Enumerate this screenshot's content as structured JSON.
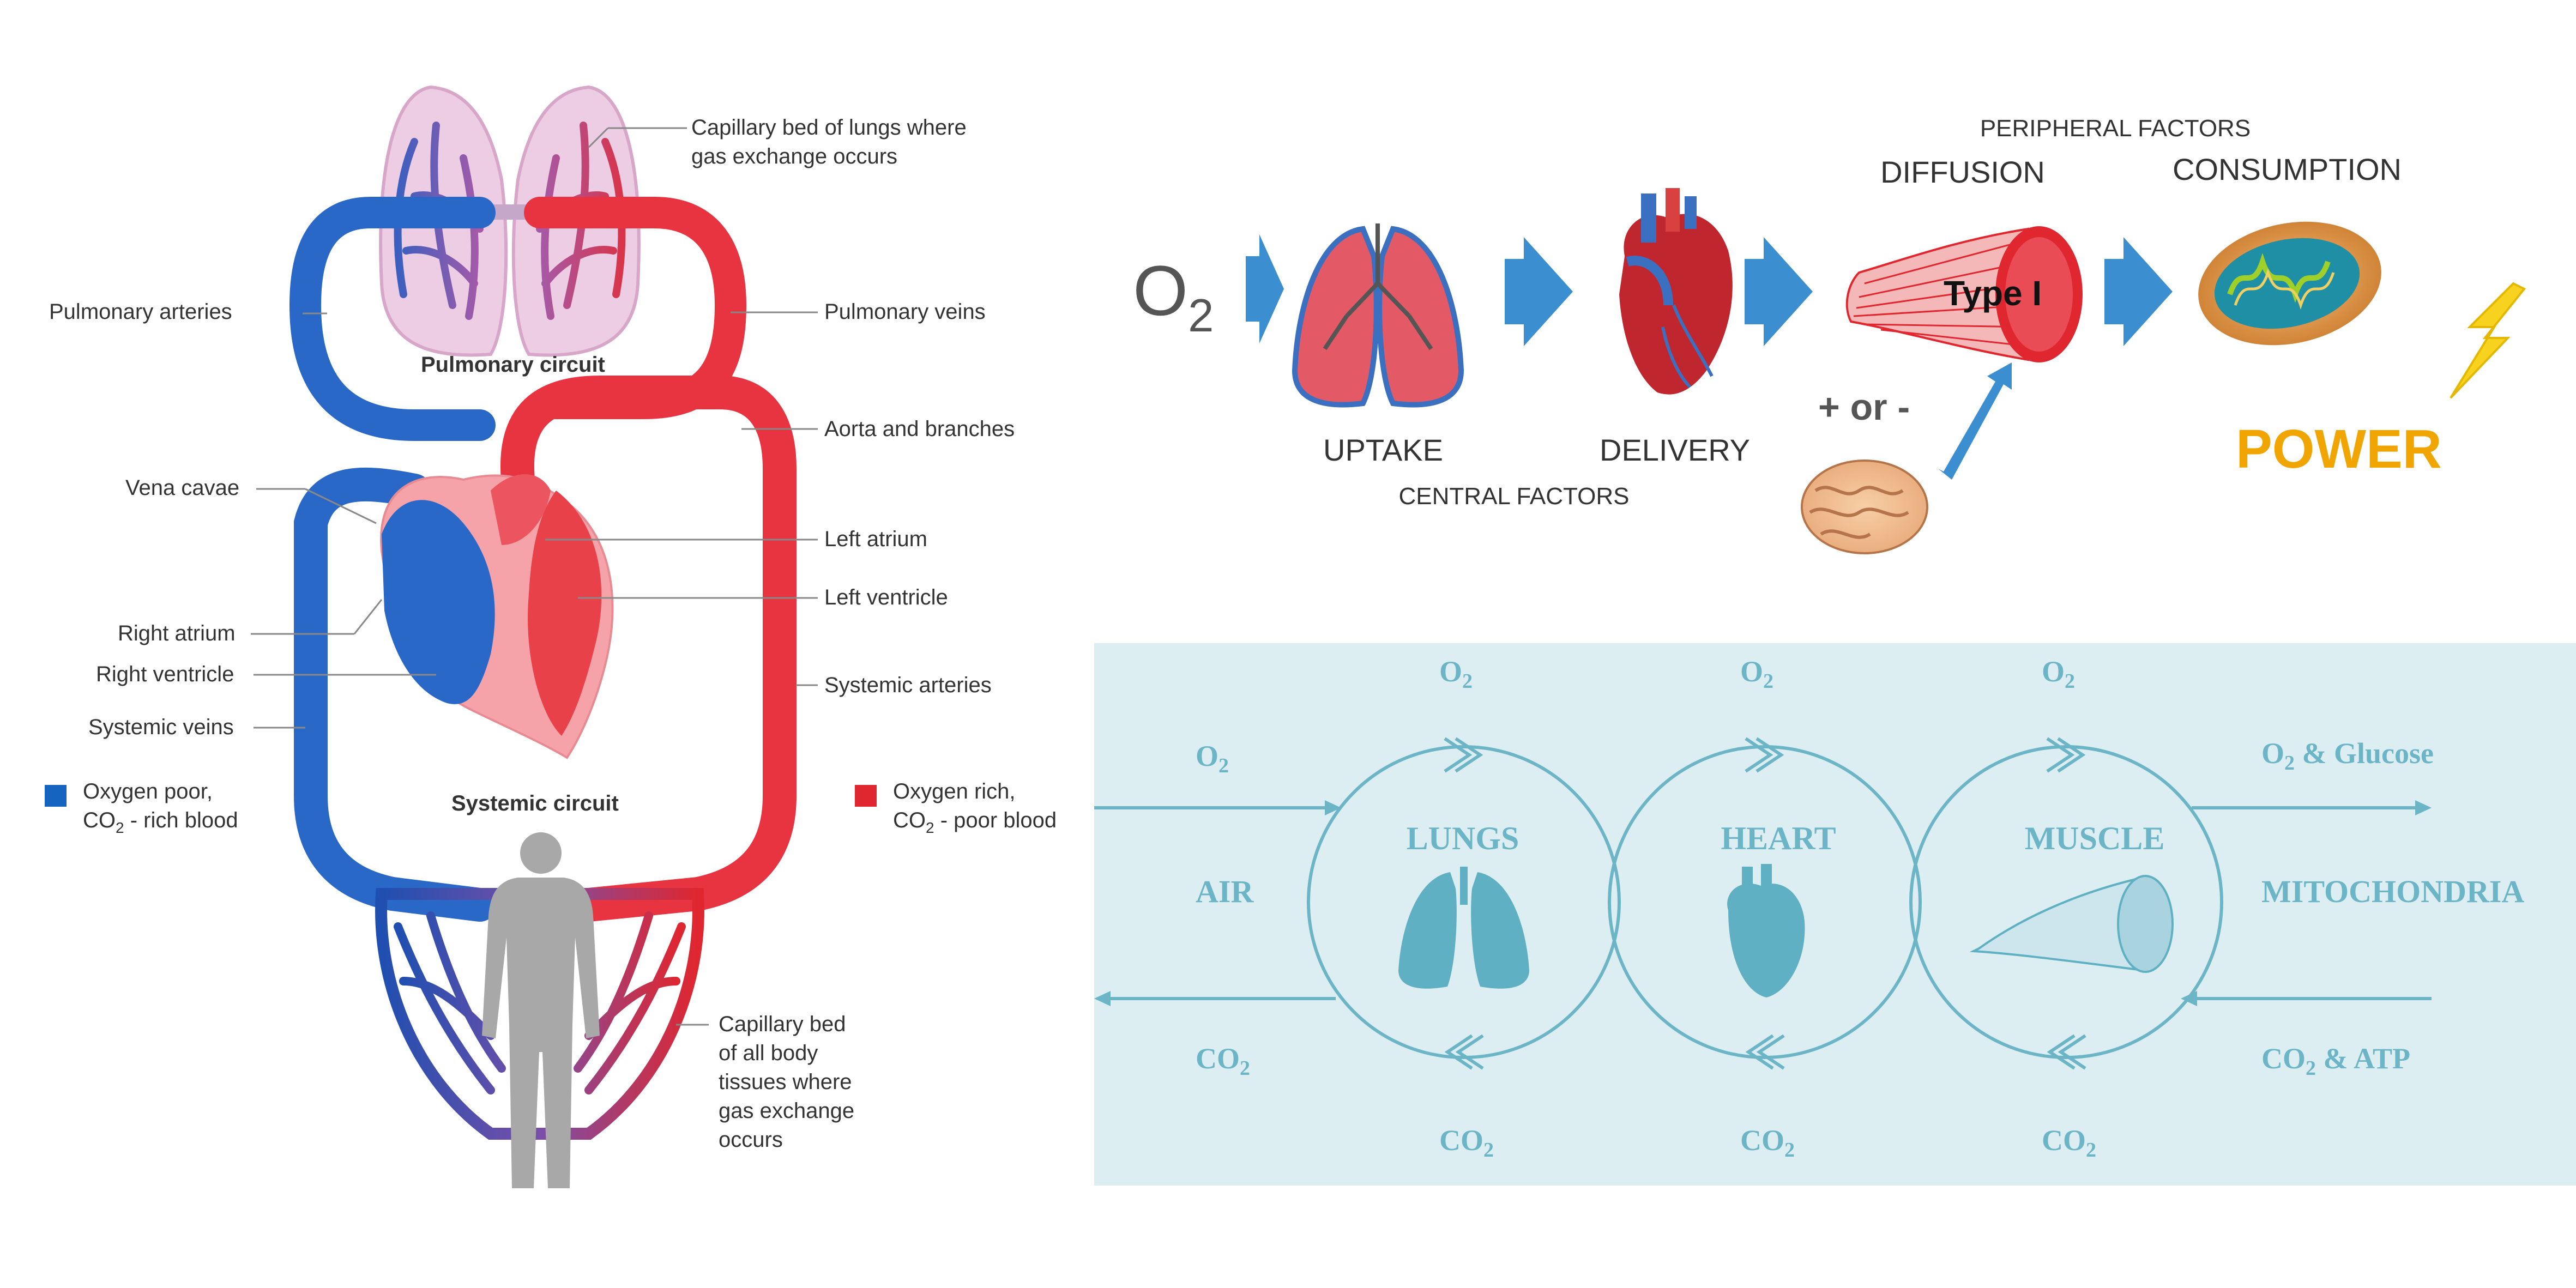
{
  "circulation": {
    "labels": {
      "capillary_lungs_1": "Capillary bed of lungs where",
      "capillary_lungs_2": "gas exchange occurs",
      "pulmonary_arteries": "Pulmonary arteries",
      "pulmonary_veins": "Pulmonary veins",
      "pulmonary_circuit": "Pulmonary circuit",
      "aorta": "Aorta and branches",
      "vena_cavae": "Vena cavae",
      "left_atrium": "Left atrium",
      "left_ventricle": "Left ventricle",
      "right_atrium": "Right atrium",
      "right_ventricle": "Right ventricle",
      "systemic_arteries": "Systemic arteries",
      "systemic_veins": "Systemic veins",
      "systemic_circuit": "Systemic circuit",
      "capillary_body_1": "Capillary bed",
      "capillary_body_2": "of all body",
      "capillary_body_3": "tissues where",
      "capillary_body_4": "gas exchange",
      "capillary_body_5": "occurs"
    },
    "legend": {
      "poor_1": "Oxygen poor,",
      "poor_co2": "CO",
      "poor_sub": "2",
      "poor_rest": " - rich blood",
      "rich_1": "Oxygen rich,",
      "rich_co2": "CO",
      "rich_sub": "2",
      "rich_rest": " - poor blood",
      "colors": {
        "poor": "#1565c0",
        "rich": "#e0262e"
      }
    }
  },
  "chain": {
    "o2_main": "O",
    "o2_sub": "2",
    "peripheral_factors": "PERIPHERAL FACTORS",
    "diffusion": "DIFFUSION",
    "consumption": "CONSUMPTION",
    "uptake": "UPTAKE",
    "delivery": "DELIVERY",
    "central_factors": "CENTRAL FACTORS",
    "plus_minus": "+ or -",
    "type_label": "Type I",
    "power": "POWER",
    "colors": {
      "arrow": "#3b8fd0",
      "power": "#f0a500"
    }
  },
  "cycle": {
    "panel_color": "#ddeef3",
    "ink_color": "#6cb5c7",
    "o2": "O",
    "co2": "CO",
    "sub": "2",
    "air": "AIR",
    "lungs": "LUNGS",
    "heart": "HEART",
    "muscle": "MUSCLE",
    "mitochondria": "MITOCHONDRIA",
    "o2_glucose": " & Glucose",
    "co2_atp": " & ATP"
  }
}
